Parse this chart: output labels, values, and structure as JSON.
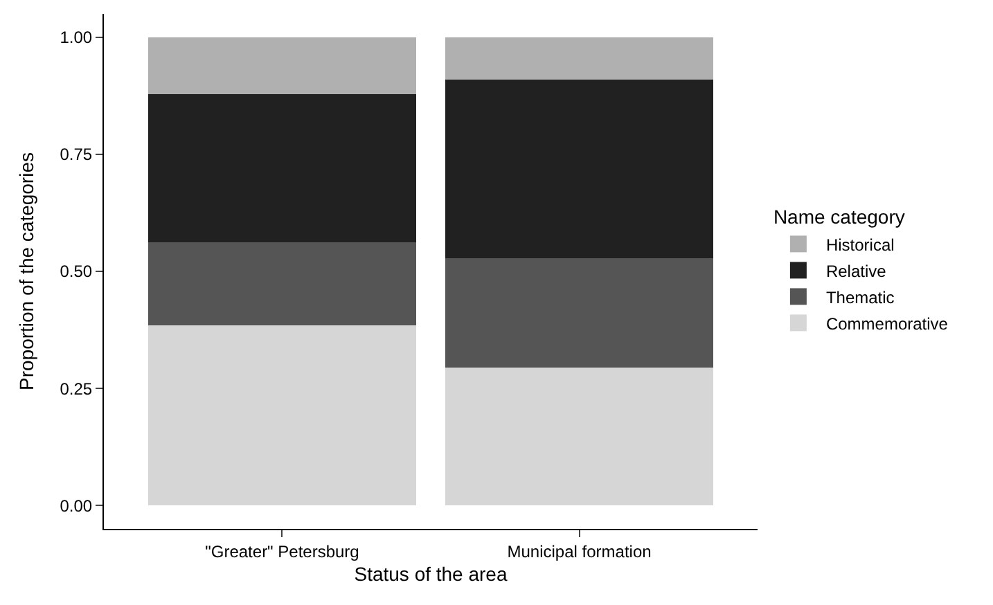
{
  "chart_data": {
    "type": "bar",
    "stacked": true,
    "xlabel": "Status of the area",
    "ylabel": "Proportion of the categories",
    "legend_title": "Name category",
    "categories": [
      "\"Greater\" Petersburg",
      "Municipal formation"
    ],
    "series": [
      {
        "name": "Commemorative",
        "color": "#d6d6d6",
        "values": [
          0.384,
          0.295
        ]
      },
      {
        "name": "Thematic",
        "color": "#555555",
        "values": [
          0.178,
          0.233
        ]
      },
      {
        "name": "Relative",
        "color": "#212121",
        "values": [
          0.316,
          0.381
        ]
      },
      {
        "name": "Historical",
        "color": "#b0b0b0",
        "values": [
          0.122,
          0.091
        ]
      }
    ],
    "ylim": [
      -0.05,
      1.05
    ],
    "yticks": [
      {
        "value": 0,
        "label": "0.00"
      },
      {
        "value": 0.25,
        "label": "0.25"
      },
      {
        "value": 0.5,
        "label": "0.50"
      },
      {
        "value": 0.75,
        "label": "0.75"
      },
      {
        "value": 1,
        "label": "1.00"
      }
    ],
    "legend": "right"
  }
}
